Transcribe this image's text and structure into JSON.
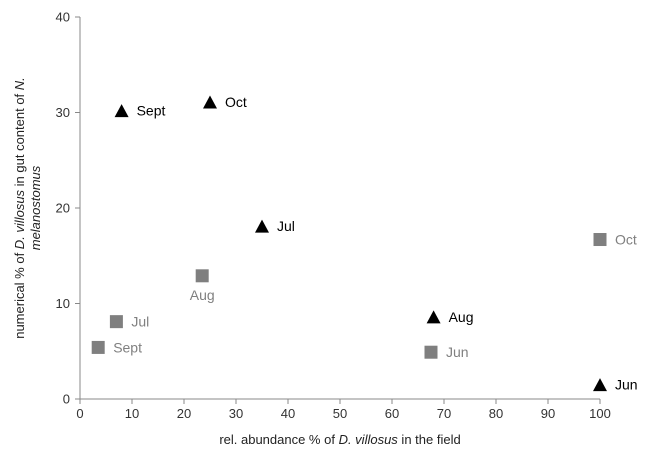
{
  "chart_data": {
    "type": "scatter",
    "xlabel": [
      "rel. abundance % of ",
      "D. villosus",
      " in the field"
    ],
    "ylabel_line1": [
      "numerical % of ",
      "D. villosus",
      " in gut content of ",
      "N."
    ],
    "ylabel_line2": [
      "melanostomus"
    ],
    "xlim": [
      0,
      100
    ],
    "ylim": [
      0,
      40
    ],
    "x_ticks": [
      0,
      10,
      20,
      30,
      40,
      50,
      60,
      70,
      80,
      90,
      100
    ],
    "y_ticks": [
      0,
      10,
      20,
      30,
      40
    ],
    "grid": false,
    "series": [
      {
        "marker": "triangle",
        "color": "#000000",
        "label_color": "#000000",
        "points": [
          {
            "x": 8,
            "y": 30.2,
            "label": "Sept",
            "label_pos": "right"
          },
          {
            "x": 25,
            "y": 31.1,
            "label": "Oct",
            "label_pos": "right"
          },
          {
            "x": 35,
            "y": 18.1,
            "label": "Jul",
            "label_pos": "right"
          },
          {
            "x": 68,
            "y": 8.6,
            "label": "Aug",
            "label_pos": "right"
          },
          {
            "x": 100,
            "y": 1.5,
            "label": "Jun",
            "label_pos": "right"
          }
        ]
      },
      {
        "marker": "square",
        "color": "#7f7f7f",
        "label_color": "#808080",
        "points": [
          {
            "x": 3.5,
            "y": 5.4,
            "label": "Sept",
            "label_pos": "right"
          },
          {
            "x": 7,
            "y": 8.1,
            "label": "Jul",
            "label_pos": "right"
          },
          {
            "x": 23.5,
            "y": 12.9,
            "label": "Aug",
            "label_pos": "below"
          },
          {
            "x": 67.5,
            "y": 4.9,
            "label": "Jun",
            "label_pos": "right"
          },
          {
            "x": 100,
            "y": 16.7,
            "label": "Oct",
            "label_pos": "right"
          }
        ]
      }
    ]
  }
}
